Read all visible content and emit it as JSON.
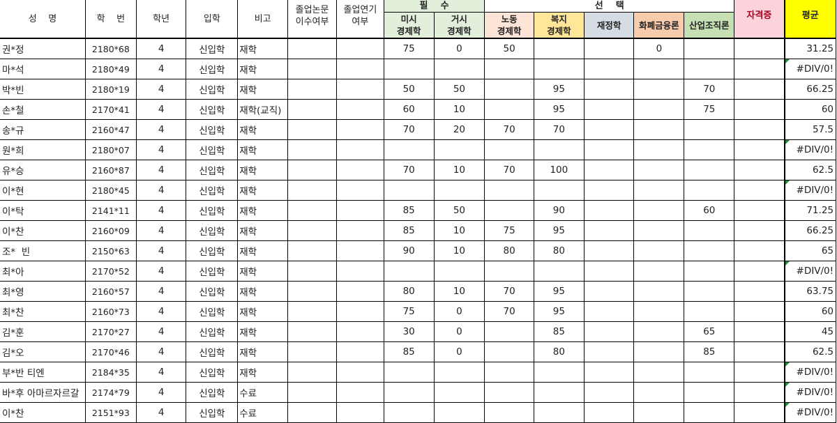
{
  "headers": {
    "name": "성    명",
    "id": "학    번",
    "grade": "학년",
    "admission": "입학",
    "note": "비고",
    "thesis": "졸업논문\n이수여부",
    "defer": "졸업연기\n여부",
    "required_group": "필    수",
    "elective_group": "선    택",
    "micro": "미시\n경제학",
    "macro": "거시\n경제학",
    "labor": "노동\n경제학",
    "welfare": "복지\n경제학",
    "public_finance": "재정학",
    "monetary": "화폐금융론",
    "industrial": "산업조직론",
    "certificate": "자격증",
    "average": "평균"
  },
  "colors": {
    "required": "#e2efda",
    "labor": "#fce4d6",
    "welfare": "#ffe699",
    "public_finance": "#d6dce4",
    "monetary": "#f8cbad",
    "industrial": "#c6e0b4",
    "certificate": "#fdd3db",
    "average": "#ffff00",
    "error_marker": "#1e8a3a"
  },
  "rows": [
    {
      "name": "권*정",
      "id": "2180*68",
      "grade": "4",
      "admission": "신입학",
      "note": "재학",
      "scores": [
        "75",
        "0",
        "50",
        "",
        "",
        "0",
        ""
      ],
      "cert": "",
      "avg": "31.25"
    },
    {
      "name": "마*석",
      "id": "2180*49",
      "grade": "4",
      "admission": "신입학",
      "note": "재학",
      "scores": [
        "",
        "",
        "",
        "",
        "",
        "",
        ""
      ],
      "cert": "",
      "avg": "#DIV/0!"
    },
    {
      "name": "박*빈",
      "id": "2180*19",
      "grade": "4",
      "admission": "신입학",
      "note": "재학",
      "scores": [
        "50",
        "50",
        "",
        "95",
        "",
        "",
        "70"
      ],
      "cert": "",
      "avg": "66.25"
    },
    {
      "name": "손*철",
      "id": "2170*41",
      "grade": "4",
      "admission": "신입학",
      "note": "재학(교직)",
      "scores": [
        "60",
        "10",
        "",
        "95",
        "",
        "",
        "75"
      ],
      "cert": "",
      "avg": "60"
    },
    {
      "name": "송*규",
      "id": "2160*47",
      "grade": "4",
      "admission": "신입학",
      "note": "재학",
      "scores": [
        "70",
        "20",
        "70",
        "70",
        "",
        "",
        ""
      ],
      "cert": "",
      "avg": "57.5"
    },
    {
      "name": "원*희",
      "id": "2180*07",
      "grade": "4",
      "admission": "신입학",
      "note": "재학",
      "scores": [
        "",
        "",
        "",
        "",
        "",
        "",
        ""
      ],
      "cert": "",
      "avg": "#DIV/0!"
    },
    {
      "name": "유*승",
      "id": "2160*87",
      "grade": "4",
      "admission": "신입학",
      "note": "재학",
      "scores": [
        "70",
        "10",
        "70",
        "100",
        "",
        "",
        ""
      ],
      "cert": "",
      "avg": "62.5"
    },
    {
      "name": "이*현",
      "id": "2180*45",
      "grade": "4",
      "admission": "신입학",
      "note": "재학",
      "scores": [
        "",
        "",
        "",
        "",
        "",
        "",
        ""
      ],
      "cert": "",
      "avg": "#DIV/0!"
    },
    {
      "name": "이*탁",
      "id": "2141*11",
      "grade": "4",
      "admission": "신입학",
      "note": "재학",
      "scores": [
        "85",
        "50",
        "",
        "90",
        "",
        "",
        "60"
      ],
      "cert": "",
      "avg": "71.25"
    },
    {
      "name": "이*찬",
      "id": "2160*09",
      "grade": "4",
      "admission": "신입학",
      "note": "재학",
      "scores": [
        "85",
        "10",
        "75",
        "95",
        "",
        "",
        ""
      ],
      "cert": "",
      "avg": "66.25"
    },
    {
      "name": "조*  빈",
      "id": "2150*63",
      "grade": "4",
      "admission": "신입학",
      "note": "재학",
      "scores": [
        "90",
        "10",
        "80",
        "80",
        "",
        "",
        ""
      ],
      "cert": "",
      "avg": "65"
    },
    {
      "name": "최*아",
      "id": "2170*52",
      "grade": "4",
      "admission": "신입학",
      "note": "재학",
      "scores": [
        "",
        "",
        "",
        "",
        "",
        "",
        ""
      ],
      "cert": "",
      "avg": "#DIV/0!"
    },
    {
      "name": "최*영",
      "id": "2160*57",
      "grade": "4",
      "admission": "신입학",
      "note": "재학",
      "scores": [
        "80",
        "10",
        "70",
        "95",
        "",
        "",
        ""
      ],
      "cert": "",
      "avg": "63.75"
    },
    {
      "name": "최*찬",
      "id": "2160*73",
      "grade": "4",
      "admission": "신입학",
      "note": "재학",
      "scores": [
        "75",
        "0",
        "70",
        "95",
        "",
        "",
        ""
      ],
      "cert": "",
      "avg": "60"
    },
    {
      "name": "김*훈",
      "id": "2170*27",
      "grade": "4",
      "admission": "신입학",
      "note": "재학",
      "scores": [
        "30",
        "0",
        "",
        "85",
        "",
        "",
        "65"
      ],
      "cert": "",
      "avg": "45"
    },
    {
      "name": "김*오",
      "id": "2170*46",
      "grade": "4",
      "admission": "신입학",
      "note": "재학",
      "scores": [
        "85",
        "0",
        "",
        "80",
        "",
        "",
        "85"
      ],
      "cert": "",
      "avg": "62.5"
    },
    {
      "name": "부*반 티엔",
      "id": "2184*35",
      "grade": "4",
      "admission": "신입학",
      "note": "재학",
      "scores": [
        "",
        "",
        "",
        "",
        "",
        "",
        ""
      ],
      "cert": "",
      "avg": "#DIV/0!"
    },
    {
      "name": "바*후 아마르자르갈",
      "id": "2174*79",
      "grade": "4",
      "admission": "신입학",
      "note": "수료",
      "scores": [
        "",
        "",
        "",
        "",
        "",
        "",
        ""
      ],
      "cert": "",
      "avg": "#DIV/0!"
    },
    {
      "name": "이*찬",
      "id": "2151*93",
      "grade": "4",
      "admission": "신입학",
      "note": "수료",
      "scores": [
        "",
        "",
        "",
        "",
        "",
        "",
        ""
      ],
      "cert": "",
      "avg": "#DIV/0!"
    }
  ]
}
